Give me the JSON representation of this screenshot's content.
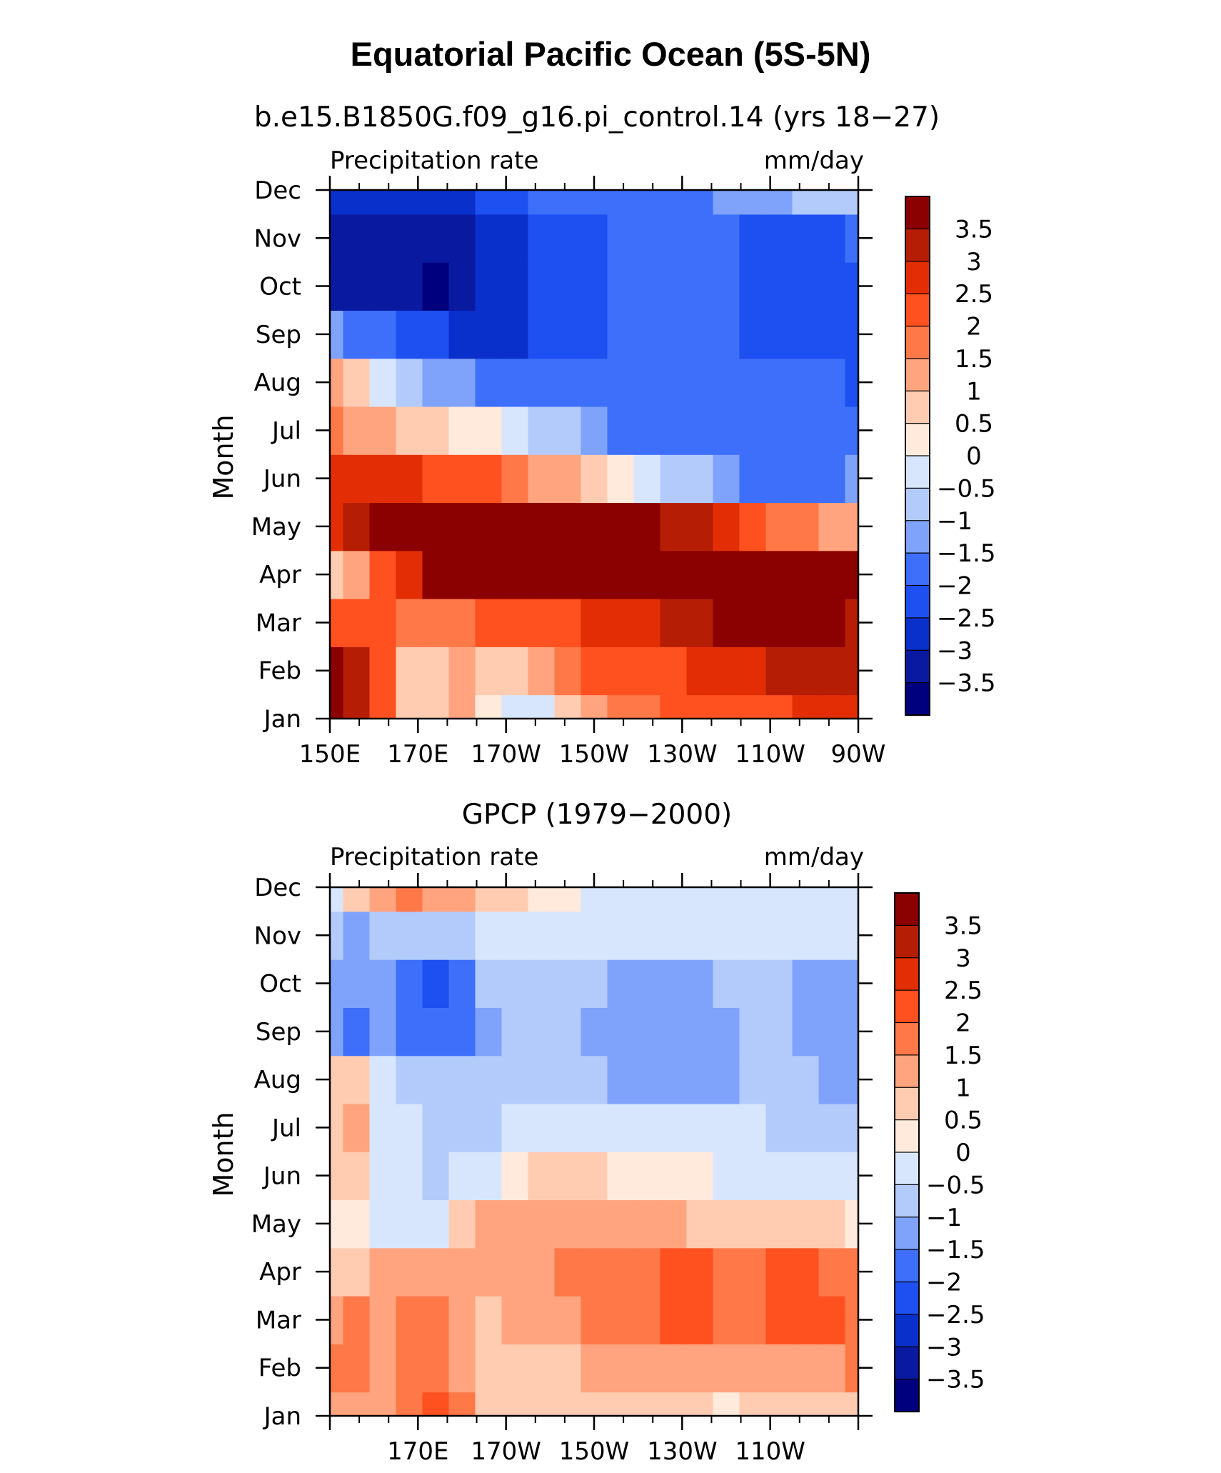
{
  "title": "Equatorial Pacific Ocean (5S-5N)",
  "colorbar": {
    "levels": [
      -3.5,
      -3,
      -2.5,
      -2,
      -1.5,
      -1,
      -0.5,
      0,
      0.5,
      1,
      1.5,
      2,
      2.5,
      3,
      3.5
    ],
    "labels": [
      "3.5",
      "3",
      "2.5",
      "2",
      "1.5",
      "1",
      "0.5",
      "0",
      "−0.5",
      "−1",
      "−1.5",
      "−2",
      "−2.5",
      "−3",
      "−3.5"
    ],
    "colors": [
      "#00007F",
      "#0A1AA0",
      "#0A30CC",
      "#1E4FF0",
      "#3D6FFA",
      "#7FA3FB",
      "#B3CBFB",
      "#D8E6FD",
      "#FFEADB",
      "#FFCCB2",
      "#FFA47E",
      "#FF7848",
      "#FF5020",
      "#E32E05",
      "#B51E05",
      "#8B0000"
    ]
  },
  "chart_data": [
    {
      "type": "heatmap",
      "subtitle": "b.e15.B1850G.f09_g16.pi_control.14 (yrs 18−27)",
      "left_label": "Precipitation rate",
      "right_label": "mm/day",
      "ylabel": "Month",
      "x_tick_labels": [
        "150E",
        "170E",
        "170W",
        "150W",
        "130W",
        "110W",
        "90W"
      ],
      "y_tick_labels": [
        "Jan",
        "Feb",
        "Mar",
        "Apr",
        "May",
        "Jun",
        "Jul",
        "Aug",
        "Sep",
        "Oct",
        "Nov",
        "Dec"
      ],
      "x_range": [
        150,
        270
      ],
      "x_label_values": [
        150,
        170,
        190,
        210,
        230,
        250,
        270
      ],
      "x": [
        150,
        156,
        162,
        168,
        174,
        180,
        186,
        192,
        198,
        204,
        210,
        216,
        222,
        228,
        234,
        240,
        246,
        252,
        258,
        264,
        270
      ],
      "y": [
        "Jan",
        "Feb",
        "Mar",
        "Apr",
        "May",
        "Jun",
        "Jul",
        "Aug",
        "Sep",
        "Oct",
        "Nov",
        "Dec"
      ],
      "z": [
        [
          3.5,
          3,
          2,
          0.5,
          0.5,
          1,
          0,
          -0.5,
          -0.5,
          0.5,
          1,
          1.5,
          1.5,
          2,
          2,
          2,
          2,
          2,
          2.5,
          2.5,
          2.5
        ],
        [
          3.5,
          3,
          2,
          0.5,
          0.5,
          1,
          0.5,
          0.5,
          1,
          1.5,
          2,
          2,
          2,
          2,
          2.5,
          2.5,
          2.5,
          3,
          3,
          3,
          3
        ],
        [
          2,
          2,
          2,
          1.5,
          1.5,
          1.5,
          2,
          2,
          2,
          2,
          2.5,
          2.5,
          2.5,
          3,
          3,
          3.5,
          3.5,
          4,
          3.5,
          3.5,
          3
        ],
        [
          0.5,
          1,
          2,
          2.5,
          3.5,
          3.5,
          3.5,
          3.5,
          3.5,
          3.5,
          3.5,
          3.5,
          3.5,
          3.5,
          3.5,
          3.5,
          4,
          4,
          4,
          4,
          3.5
        ],
        [
          2.5,
          3,
          3.5,
          4,
          4,
          4,
          4,
          4,
          4,
          4,
          3.5,
          3.5,
          3.5,
          3,
          3,
          2.5,
          2,
          1.5,
          1.5,
          1,
          1
        ],
        [
          2.5,
          2.5,
          2.5,
          2.5,
          2,
          2,
          2,
          1.5,
          1,
          1,
          0.5,
          0,
          -0.5,
          -1,
          -1,
          -1.5,
          -2,
          -2,
          -2,
          -2,
          -1.5
        ],
        [
          1.5,
          1,
          1,
          0.5,
          0.5,
          0,
          0,
          -0.5,
          -1,
          -1,
          -1.5,
          -2,
          -2,
          -2,
          -2,
          -2,
          -2,
          -2,
          -2,
          -2,
          -2
        ],
        [
          1,
          0.5,
          -0.5,
          -1,
          -1.5,
          -1.5,
          -2,
          -2,
          -2,
          -2,
          -2,
          -2,
          -2,
          -2,
          -2,
          -2,
          -2,
          -2,
          -2,
          -2,
          -2.5
        ],
        [
          -1.5,
          -2,
          -2,
          -2.5,
          -2.5,
          -3,
          -3,
          -3,
          -2.5,
          -2.5,
          -2.5,
          -2,
          -2,
          -2,
          -2,
          -2,
          -2.5,
          -2.5,
          -2.5,
          -2.5,
          -2.5
        ],
        [
          -3.5,
          -3.5,
          -3.5,
          -3.5,
          -4,
          -3.5,
          -3,
          -3,
          -2.5,
          -2.5,
          -2.5,
          -2,
          -2,
          -2,
          -2,
          -2,
          -2.5,
          -2.5,
          -2.5,
          -2.5,
          -2.5
        ],
        [
          -3.5,
          -3.5,
          -3.5,
          -3.5,
          -3.5,
          -3.5,
          -3,
          -3,
          -2.5,
          -2.5,
          -2.5,
          -2,
          -2,
          -2,
          -2,
          -2,
          -2.5,
          -2.5,
          -2.5,
          -2.5,
          -2
        ],
        [
          -3,
          -3,
          -3,
          -3,
          -3,
          -3,
          -2.5,
          -2.5,
          -2,
          -2,
          -2,
          -2,
          -2,
          -2,
          -2,
          -1.5,
          -1.5,
          -1.5,
          -1,
          -1,
          -1
        ]
      ]
    },
    {
      "type": "heatmap",
      "subtitle": "GPCP (1979−2000)",
      "left_label": "Precipitation rate",
      "right_label": "mm/day",
      "ylabel": "Month",
      "x_tick_labels": [
        "170E",
        "170W",
        "150W",
        "130W",
        "110W"
      ],
      "y_tick_labels": [
        "Jan",
        "Feb",
        "Mar",
        "Apr",
        "May",
        "Jun",
        "Jul",
        "Aug",
        "Sep",
        "Oct",
        "Nov",
        "Dec"
      ],
      "x_range": [
        150,
        270
      ],
      "x_label_values": [
        170,
        190,
        210,
        230,
        250
      ],
      "x": [
        150,
        156,
        162,
        168,
        174,
        180,
        186,
        192,
        198,
        204,
        210,
        216,
        222,
        228,
        234,
        240,
        246,
        252,
        258,
        264,
        270
      ],
      "y": [
        "Jan",
        "Feb",
        "Mar",
        "Apr",
        "May",
        "Jun",
        "Jul",
        "Aug",
        "Sep",
        "Oct",
        "Nov",
        "Dec"
      ],
      "z": [
        [
          1,
          1,
          1,
          1.5,
          2,
          1.5,
          0.5,
          0.5,
          0.5,
          0.5,
          0.5,
          0.5,
          0.5,
          0.5,
          0.5,
          0,
          0.5,
          0.5,
          0.5,
          0.5,
          0.5
        ],
        [
          1.5,
          1.5,
          1,
          1.5,
          1.5,
          1,
          0.5,
          0.5,
          0.5,
          0.5,
          1,
          1,
          1,
          1,
          1,
          1,
          1,
          1,
          1,
          1,
          1.5
        ],
        [
          1,
          1.5,
          1,
          1.5,
          1.5,
          1,
          0.5,
          1,
          1,
          1,
          1.5,
          1.5,
          1.5,
          2,
          2,
          1.5,
          1.5,
          2,
          2,
          2,
          1.5
        ],
        [
          0.5,
          0.5,
          1,
          1,
          1,
          1,
          1,
          1,
          1,
          1.5,
          1.5,
          1.5,
          1.5,
          2,
          2,
          1.5,
          1.5,
          2,
          2,
          1.5,
          1.5
        ],
        [
          0,
          0,
          -0.5,
          -0.5,
          -0.5,
          0.5,
          1,
          1,
          1,
          1,
          1,
          1,
          1,
          1,
          0.5,
          0.5,
          0.5,
          0.5,
          0.5,
          0.5,
          0
        ],
        [
          0.5,
          0.5,
          -0.5,
          -0.5,
          -1,
          -0.5,
          -0.5,
          0,
          0.5,
          0.5,
          0.5,
          0,
          0,
          0,
          0,
          -0.5,
          -0.5,
          -0.5,
          -0.5,
          -0.5,
          -0.5
        ],
        [
          0.5,
          1,
          -0.5,
          -0.5,
          -1,
          -1,
          -1,
          -0.5,
          -0.5,
          -0.5,
          -0.5,
          -0.5,
          -0.5,
          -0.5,
          -0.5,
          -0.5,
          -0.5,
          -1,
          -1,
          -1,
          -1
        ],
        [
          0.5,
          0.5,
          -0.5,
          -1,
          -1,
          -1,
          -1,
          -1,
          -1,
          -1,
          -1,
          -1.5,
          -1.5,
          -1.5,
          -1.5,
          -1.5,
          -1,
          -1,
          -1,
          -1.5,
          -1.5
        ],
        [
          -1.5,
          -2,
          -1.5,
          -2,
          -2,
          -2,
          -1.5,
          -1,
          -1,
          -1,
          -1.5,
          -1.5,
          -1.5,
          -1.5,
          -1.5,
          -1.5,
          -1,
          -1,
          -1.5,
          -1.5,
          -1.5
        ],
        [
          -1.5,
          -1.5,
          -1.5,
          -2,
          -2.5,
          -2,
          -1,
          -1,
          -1,
          -1,
          -1,
          -1.5,
          -1.5,
          -1.5,
          -1.5,
          -1,
          -1,
          -1,
          -1.5,
          -1.5,
          -1.5
        ],
        [
          -1,
          -1.5,
          -1,
          -1,
          -1,
          -1,
          -0.5,
          -0.5,
          -0.5,
          -0.5,
          -0.5,
          -0.5,
          -0.5,
          -0.5,
          -0.5,
          -0.5,
          -0.5,
          -0.5,
          -0.5,
          -0.5,
          -0.5
        ],
        [
          -0.5,
          0.5,
          1,
          1.5,
          1,
          1,
          0.5,
          0.5,
          0,
          0,
          -0.5,
          -0.5,
          -0.5,
          -0.5,
          -0.5,
          -0.5,
          -0.5,
          -0.5,
          -0.5,
          -0.5,
          -0.5
        ]
      ]
    }
  ]
}
